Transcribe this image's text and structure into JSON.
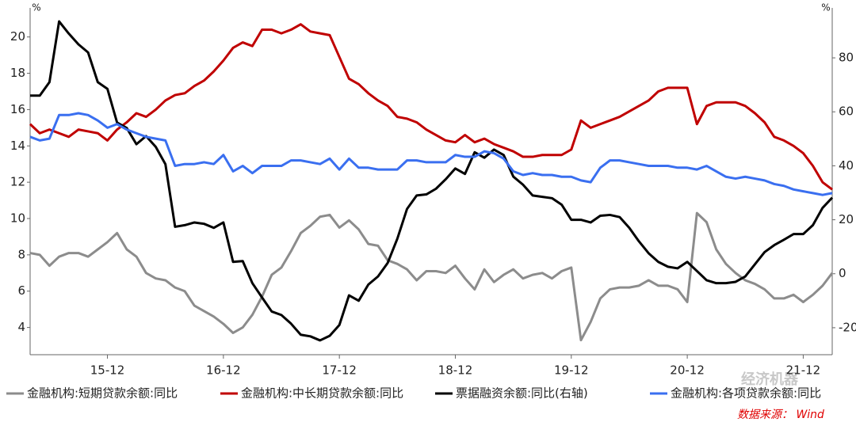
{
  "chart_data": {
    "type": "line",
    "y_unit": "%",
    "y2_unit": "%",
    "categories": [
      null,
      null,
      null,
      null,
      null,
      null,
      null,
      null,
      "15-12",
      null,
      null,
      null,
      null,
      null,
      null,
      null,
      null,
      null,
      null,
      null,
      "16-12",
      null,
      null,
      null,
      null,
      null,
      null,
      null,
      null,
      null,
      null,
      null,
      "17-12",
      null,
      null,
      null,
      null,
      null,
      null,
      null,
      null,
      null,
      null,
      null,
      "18-12",
      null,
      null,
      null,
      null,
      null,
      null,
      null,
      null,
      null,
      null,
      null,
      "19-12",
      null,
      null,
      null,
      null,
      null,
      null,
      null,
      null,
      null,
      null,
      null,
      "20-12",
      null,
      null,
      null,
      null,
      null,
      null,
      null,
      null,
      null,
      null,
      null,
      "21-12",
      null,
      null,
      null
    ],
    "ylim": [
      2.5,
      21.6
    ],
    "yticks": [
      4,
      6,
      8,
      10,
      12,
      14,
      16,
      18,
      20
    ],
    "y2lim": [
      -30,
      98.5
    ],
    "y2ticks": [
      -20,
      0,
      20,
      40,
      60,
      80
    ],
    "series": [
      {
        "name": "金融机构:短期贷款余额:同比",
        "color": "#8c8c8c",
        "values": [
          8.1,
          8.0,
          7.4,
          7.9,
          8.1,
          8.1,
          7.9,
          8.3,
          8.7,
          9.2,
          8.3,
          7.9,
          7.0,
          6.7,
          6.6,
          6.2,
          6.0,
          5.2,
          4.9,
          4.6,
          4.2,
          3.7,
          4.0,
          4.7,
          5.7,
          6.9,
          7.3,
          8.2,
          9.2,
          9.6,
          10.1,
          10.2,
          9.5,
          9.9,
          9.4,
          8.6,
          8.5,
          7.7,
          7.5,
          7.2,
          6.6,
          7.1,
          7.1,
          7.0,
          7.4,
          6.7,
          6.1,
          7.2,
          6.5,
          6.9,
          7.2,
          6.7,
          6.9,
          7.0,
          6.7,
          7.1,
          7.3,
          3.3,
          4.3,
          5.6,
          6.1,
          6.2,
          6.2,
          6.3,
          6.6,
          6.3,
          6.3,
          6.1,
          5.4,
          10.3,
          9.8,
          8.3,
          7.5,
          7.0,
          6.6,
          6.4,
          6.1,
          5.6,
          5.6,
          5.8,
          5.4,
          5.8,
          6.3,
          7.0
        ]
      },
      {
        "name": "金融机构:中长期贷款余额:同比",
        "color": "#c00000",
        "values": [
          15.2,
          14.7,
          14.9,
          14.7,
          14.5,
          14.9,
          14.8,
          14.7,
          14.3,
          14.9,
          15.3,
          15.8,
          15.6,
          16.0,
          16.5,
          16.8,
          16.9,
          17.3,
          17.6,
          18.1,
          18.7,
          19.4,
          19.7,
          19.5,
          20.4,
          20.4,
          20.2,
          20.4,
          20.7,
          20.3,
          20.2,
          20.1,
          18.9,
          17.7,
          17.4,
          16.9,
          16.5,
          16.2,
          15.6,
          15.5,
          15.3,
          14.9,
          14.6,
          14.3,
          14.2,
          14.6,
          14.2,
          14.4,
          14.1,
          13.9,
          13.7,
          13.4,
          13.4,
          13.5,
          13.5,
          13.5,
          13.8,
          15.4,
          15.0,
          15.2,
          15.4,
          15.6,
          15.9,
          16.2,
          16.5,
          17.0,
          17.2,
          17.2,
          17.2,
          15.2,
          16.2,
          16.4,
          16.4,
          16.4,
          16.2,
          15.8,
          15.3,
          14.5,
          14.3,
          14.0,
          13.6,
          12.9,
          12.0,
          11.6
        ]
      },
      {
        "name": "票据融资余额:同比(右轴)",
        "color": "#000000",
        "axis": "y2",
        "values": [
          66,
          66,
          71,
          93.5,
          89,
          85,
          82,
          71,
          68.5,
          56,
          54,
          48,
          51,
          47,
          40.6,
          17.4,
          18,
          19,
          18.5,
          17,
          19,
          4.4,
          4.7,
          -3.5,
          -8.8,
          -14,
          -15.3,
          -18.5,
          -22.6,
          -23.2,
          -24.7,
          -23,
          -19,
          -8,
          -10,
          -4,
          -1,
          4,
          13,
          24,
          29,
          29.4,
          31.5,
          35,
          39,
          37,
          45,
          43,
          46,
          44,
          36,
          33,
          29,
          28.5,
          28,
          25.6,
          20,
          20,
          19,
          21.5,
          21.8,
          21,
          17,
          12,
          7.6,
          4.4,
          2.6,
          2,
          4.4,
          1,
          -2.4,
          -3.5,
          -3.5,
          -3,
          -1,
          3.5,
          8,
          10.6,
          12.6,
          14.7,
          14.7,
          18,
          24.4,
          28.2
        ]
      },
      {
        "name": "金融机构:各项贷款余额:同比",
        "color": "#3a6ff0",
        "values": [
          14.5,
          14.3,
          14.4,
          15.7,
          15.7,
          15.8,
          15.7,
          15.4,
          15.0,
          15.2,
          14.9,
          14.7,
          14.5,
          14.4,
          14.3,
          12.9,
          13.0,
          13.0,
          13.1,
          13.0,
          13.5,
          12.6,
          12.9,
          12.5,
          12.9,
          12.9,
          12.9,
          13.2,
          13.2,
          13.1,
          13.0,
          13.3,
          12.7,
          13.3,
          12.8,
          12.8,
          12.7,
          12.7,
          12.7,
          13.2,
          13.2,
          13.1,
          13.1,
          13.1,
          13.5,
          13.4,
          13.4,
          13.7,
          13.6,
          13.3,
          12.6,
          12.4,
          12.5,
          12.4,
          12.4,
          12.3,
          12.3,
          12.1,
          12.0,
          12.8,
          13.2,
          13.2,
          13.1,
          13.0,
          12.9,
          12.9,
          12.9,
          12.8,
          12.8,
          12.7,
          12.9,
          12.6,
          12.3,
          12.2,
          12.3,
          12.2,
          12.1,
          11.9,
          11.8,
          11.6,
          11.5,
          11.4,
          11.3,
          11.4
        ]
      }
    ],
    "source": "数据来源： Wind",
    "watermark": "经济机器"
  }
}
